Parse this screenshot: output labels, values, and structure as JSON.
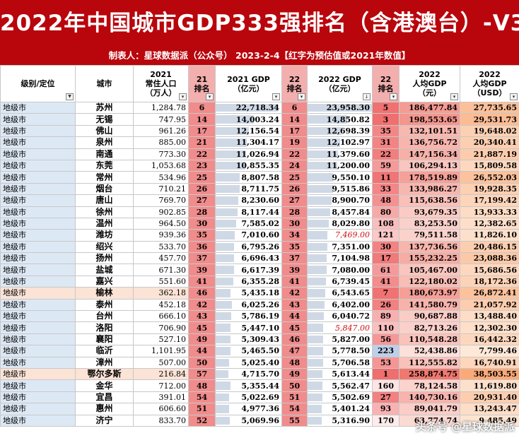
{
  "title": "2022年中国城市GDP333强排名（含港澳台）-V3",
  "subtitle": "制表人：星球数据派（公众号）   2023-2-4【红字为预估值或2021年数值】",
  "headers": {
    "level": "级别/定位",
    "city": "城市",
    "pop": [
      "2021",
      "常住人口",
      "（万人）"
    ],
    "rank21": [
      "21",
      "排名"
    ],
    "gdp21": [
      "2021 GDP",
      "（亿元）"
    ],
    "rank22": [
      "22",
      "排名"
    ],
    "gdp22": [
      "2022 GDP",
      "（亿元）"
    ],
    "rankpc": [
      "22",
      "排名"
    ],
    "gdppc": [
      "2022",
      "人均GDP",
      "（元）"
    ],
    "usd": [
      "2022",
      "人均GDP",
      "（USD）"
    ]
  },
  "bar_max": 24000,
  "colors": {
    "banner": "#b8060c",
    "rank_fill": "#f08c8c",
    "estimate_text": "#d01010",
    "level_fill": "#dde8f5"
  },
  "rows": [
    {
      "level": "地级市",
      "city": "苏州",
      "pop": "1,284.78",
      "r21": "6",
      "g21": "22,718.34",
      "g21v": 22718.34,
      "r22": "6",
      "g22": "23,958.30",
      "g22v": 23958.3,
      "rpc": "5",
      "pc": "186,477.84",
      "pcv": 186477.84,
      "usd": "27,735.65",
      "usdv": 27735.65
    },
    {
      "level": "地级市",
      "city": "无锡",
      "pop": "747.95",
      "r21": "14",
      "g21": "14,003.24",
      "g21v": 14003.24,
      "r22": "14",
      "g22": "14,850.82",
      "g22v": 14850.82,
      "rpc": "3",
      "pc": "198,553.65",
      "pcv": 198553.65,
      "usd": "29,531.73",
      "usdv": 29531.73
    },
    {
      "level": "地级市",
      "city": "佛山",
      "pop": "961.26",
      "r21": "17",
      "g21": "12,156.54",
      "g21v": 12156.54,
      "r22": "17",
      "g22": "12,698.39",
      "g22v": 12698.39,
      "rpc": "35",
      "pc": "132,101.51",
      "pcv": 132101.51,
      "usd": "19,648.02",
      "usdv": 19648.02
    },
    {
      "level": "地级市",
      "city": "泉州",
      "pop": "885.00",
      "r21": "21",
      "g21": "11,304.17",
      "g21v": 11304.17,
      "r22": "19",
      "g22": "12,102.97",
      "g22v": 12102.97,
      "rpc": "31",
      "pc": "136,756.72",
      "pcv": 136756.72,
      "usd": "20,340.41",
      "usdv": 20340.41
    },
    {
      "level": "地级市",
      "city": "南通",
      "pop": "773.30",
      "r21": "22",
      "g21": "11,026.94",
      "g21v": 11026.94,
      "r22": "22",
      "g22": "11,379.60",
      "g22v": 11379.6,
      "rpc": "22",
      "pc": "147,156.34",
      "pcv": 147156.34,
      "usd": "21,887.19",
      "usdv": 21887.19
    },
    {
      "level": "地级市",
      "city": "东莞",
      "pop": "1,053.68",
      "r21": "23",
      "g21": "10,855.35",
      "g21v": 10855.35,
      "r22": "24",
      "g22": "11,200.00",
      "g22v": 11200.0,
      "rpc": "59",
      "pc": "106,294.13",
      "pcv": 106294.13,
      "usd": "15,809.58",
      "usdv": 15809.58
    },
    {
      "level": "地级市",
      "city": "常州",
      "pop": "534.96",
      "r21": "25",
      "g21": "8,807.58",
      "g21v": 8807.58,
      "r22": "25",
      "g22": "9,550.10",
      "g22v": 9550.1,
      "rpc": "11",
      "pc": "178,519.89",
      "pcv": 178519.89,
      "usd": "26,552.03",
      "usdv": 26552.03
    },
    {
      "level": "地级市",
      "city": "烟台",
      "pop": "710.21",
      "r21": "26",
      "g21": "8,711.75",
      "g21v": 8711.75,
      "r22": "26",
      "g22": "9,515.86",
      "g22v": 9515.86,
      "rpc": "33",
      "pc": "133,986.27",
      "pcv": 133986.27,
      "usd": "19,928.35",
      "usdv": 19928.35
    },
    {
      "level": "地级市",
      "city": "唐山",
      "pop": "769.70",
      "r21": "27",
      "g21": "8,230.60",
      "g21v": 8230.6,
      "r22": "27",
      "g22": "8,900.70",
      "g22v": 8900.7,
      "rpc": "48",
      "pc": "115,638.56",
      "pcv": 115638.56,
      "usd": "17,199.42",
      "usdv": 17199.42
    },
    {
      "level": "地级市",
      "city": "徐州",
      "pop": "902.85",
      "r21": "28",
      "g21": "8,117.44",
      "g21v": 8117.44,
      "r22": "28",
      "g22": "8,457.84",
      "g22v": 8457.84,
      "rpc": "80",
      "pc": "93,679.35",
      "pcv": 93679.35,
      "usd": "13,933.33",
      "usdv": 13933.33
    },
    {
      "level": "地级市",
      "city": "温州",
      "pop": "964.50",
      "r21": "30",
      "g21": "7,585.02",
      "g21v": 7585.02,
      "r22": "30",
      "g22": "8,029.80",
      "g22v": 8029.8,
      "rpc": "108",
      "pc": "83,253.50",
      "pcv": 83253.5,
      "usd": "12,382.65",
      "usdv": 12382.65
    },
    {
      "level": "地级市",
      "city": "潍坊",
      "pop": "939.36",
      "r21": "35",
      "g21": "7,010.60",
      "g21v": 7010.6,
      "r22": "34",
      "g22": "7,469.00",
      "g22v": 7469.0,
      "est": true,
      "rpc": "121",
      "pc": "79,511.58",
      "pcv": 79511.58,
      "usd": "11,826.10",
      "usdv": 11826.1
    },
    {
      "level": "地级市",
      "city": "绍兴",
      "pop": "533.70",
      "r21": "36",
      "g21": "6,795.26",
      "g21v": 6795.26,
      "r22": "35",
      "g22": "7,351.00",
      "g22v": 7351.0,
      "rpc": "30",
      "pc": "137,736.56",
      "pcv": 137736.56,
      "usd": "20,486.15",
      "usdv": 20486.15
    },
    {
      "level": "地级市",
      "city": "扬州",
      "pop": "457.70",
      "r21": "37",
      "g21": "6,696.43",
      "g21v": 6696.43,
      "r22": "37",
      "g22": "7,104.98",
      "g22v": 7104.98,
      "rpc": "17",
      "pc": "155,232.25",
      "pcv": 155232.25,
      "usd": "23,088.36",
      "usdv": 23088.36
    },
    {
      "level": "地级市",
      "city": "盐城",
      "pop": "671.30",
      "r21": "39",
      "g21": "6,617.39",
      "g21v": 6617.39,
      "r22": "39",
      "g22": "7,080.00",
      "g22v": 7080.0,
      "rpc": "61",
      "pc": "105,467.00",
      "pcv": 105467.0,
      "usd": "15,686.56",
      "usdv": 15686.56
    },
    {
      "level": "地级市",
      "city": "嘉兴",
      "pop": "551.60",
      "r21": "41",
      "g21": "6,355.28",
      "g21v": 6355.28,
      "r22": "41",
      "g22": "6,739.45",
      "g22v": 6739.45,
      "rpc": "41",
      "pc": "122,180.02",
      "pcv": 122180.02,
      "usd": "18,172.36",
      "usdv": 18172.36
    },
    {
      "level": "地级市",
      "city": "榆林",
      "pop": "362.18",
      "r21": "46",
      "g21": "5,435.18",
      "g21v": 5435.18,
      "r22": "42",
      "g22": "6,543.65",
      "g22v": 6543.65,
      "rpc": "7",
      "pc": "180,673.97",
      "pcv": 180673.97,
      "usd": "26,872.41",
      "usdv": 26872.41,
      "hl": true
    },
    {
      "level": "地级市",
      "city": "泰州",
      "pop": "452.18",
      "r21": "42",
      "g21": "6,025.26",
      "g21v": 6025.26,
      "r22": "43",
      "g22": "6,402.00",
      "g22v": 6402.0,
      "rpc": "26",
      "pc": "141,580.79",
      "pcv": 141580.79,
      "usd": "21,057.92",
      "usdv": 21057.92
    },
    {
      "level": "地级市",
      "city": "台州",
      "pop": "666.10",
      "r21": "43",
      "g21": "5,786.19",
      "g21v": 5786.19,
      "r22": "44",
      "g22": "6,040.72",
      "g22v": 6040.72,
      "rpc": "89",
      "pc": "90,687.88",
      "pcv": 90687.88,
      "usd": "13,488.40",
      "usdv": 13488.4
    },
    {
      "level": "地级市",
      "city": "洛阳",
      "pop": "706.90",
      "r21": "45",
      "g21": "5,447.10",
      "g21v": 5447.1,
      "r22": "45",
      "g22": "5,847.00",
      "g22v": 5847.0,
      "est": true,
      "rpc": "110",
      "pc": "82,713.26",
      "pcv": 82713.26,
      "usd": "12,302.30",
      "usdv": 12302.3
    },
    {
      "level": "地级市",
      "city": "襄阳",
      "pop": "527.10",
      "r21": "49",
      "g21": "5,309.43",
      "g21v": 5309.43,
      "r22": "46",
      "g22": "5,827.00",
      "g22v": 5827.0,
      "rpc": "56",
      "pc": "110,548.28",
      "pcv": 110548.28,
      "usd": "16,442.32",
      "usdv": 16442.32
    },
    {
      "level": "地级市",
      "city": "临沂",
      "pop": "1,101.95",
      "r21": "44",
      "g21": "5,465.50",
      "g21v": 5465.5,
      "r22": "47",
      "g22": "5,778.50",
      "g22v": 5778.5,
      "rpc": "223",
      "pc": "52,438.86",
      "pcv": 52438.86,
      "usd": "7,799.46",
      "usdv": 7799.46,
      "rpcBlue": true
    },
    {
      "level": "地级市",
      "city": "漳州",
      "pop": "507.00",
      "r21": "50",
      "g21": "5,025.40",
      "g21v": 5025.4,
      "r22": "48",
      "g22": "5,706.58",
      "g22v": 5706.58,
      "rpc": "53",
      "pc": "112,555.82",
      "pcv": 112555.82,
      "usd": "16,740.91",
      "usdv": 16740.91
    },
    {
      "level": "地级市",
      "city": "鄂尔多斯",
      "pop": "216.84",
      "r21": "57",
      "g21": "4,715.70",
      "g21v": 4715.7,
      "r22": "49",
      "g22": "5,613.44",
      "g22v": 5613.44,
      "rpc": "1",
      "pc": "258,874.75",
      "pcv": 258874.75,
      "usd": "38,503.55",
      "usdv": 38503.55,
      "hl": true
    },
    {
      "level": "地级市",
      "city": "金华",
      "pop": "712.00",
      "r21": "48",
      "g21": "5,355.44",
      "g21v": 5355.44,
      "r22": "50",
      "g22": "5,562.47",
      "g22v": 5562.47,
      "rpc": "160",
      "pc": "78,124.58",
      "pcv": 78124.58,
      "usd": "11,619.80",
      "usdv": 11619.8
    },
    {
      "level": "地级市",
      "city": "宜昌",
      "pop": "391.01",
      "r21": "54",
      "g21": "5,022.69",
      "g21v": 5022.69,
      "r22": "51",
      "g22": "5,502.69",
      "g22v": 5502.69,
      "rpc": "27",
      "pc": "140,730.16",
      "pcv": 140730.16,
      "usd": "20,931.40",
      "usdv": 20931.4
    },
    {
      "level": "地级市",
      "city": "惠州",
      "pop": "606.60",
      "r21": "51",
      "g21": "4,977.36",
      "g21v": 4977.36,
      "r22": "54",
      "g22": "5,401.24",
      "g22v": 5401.24,
      "rpc": "93",
      "pc": "89,041.79",
      "pcv": 89041.79,
      "usd": "13,243.47",
      "usdv": 13243.47
    },
    {
      "level": "地级市",
      "city": "济宁",
      "pop": "833.70",
      "r21": "52",
      "g21": "5,069.96",
      "g21v": 5069.96,
      "r22": "55",
      "g22": "5,316.90",
      "g22v": 5316.9,
      "rpc": "170",
      "pc": "63,774.74",
      "pcv": 63774.74,
      "usd": "9,485.49",
      "usdv": 9485.49
    }
  ],
  "watermark": "头条号 @星球数据派"
}
